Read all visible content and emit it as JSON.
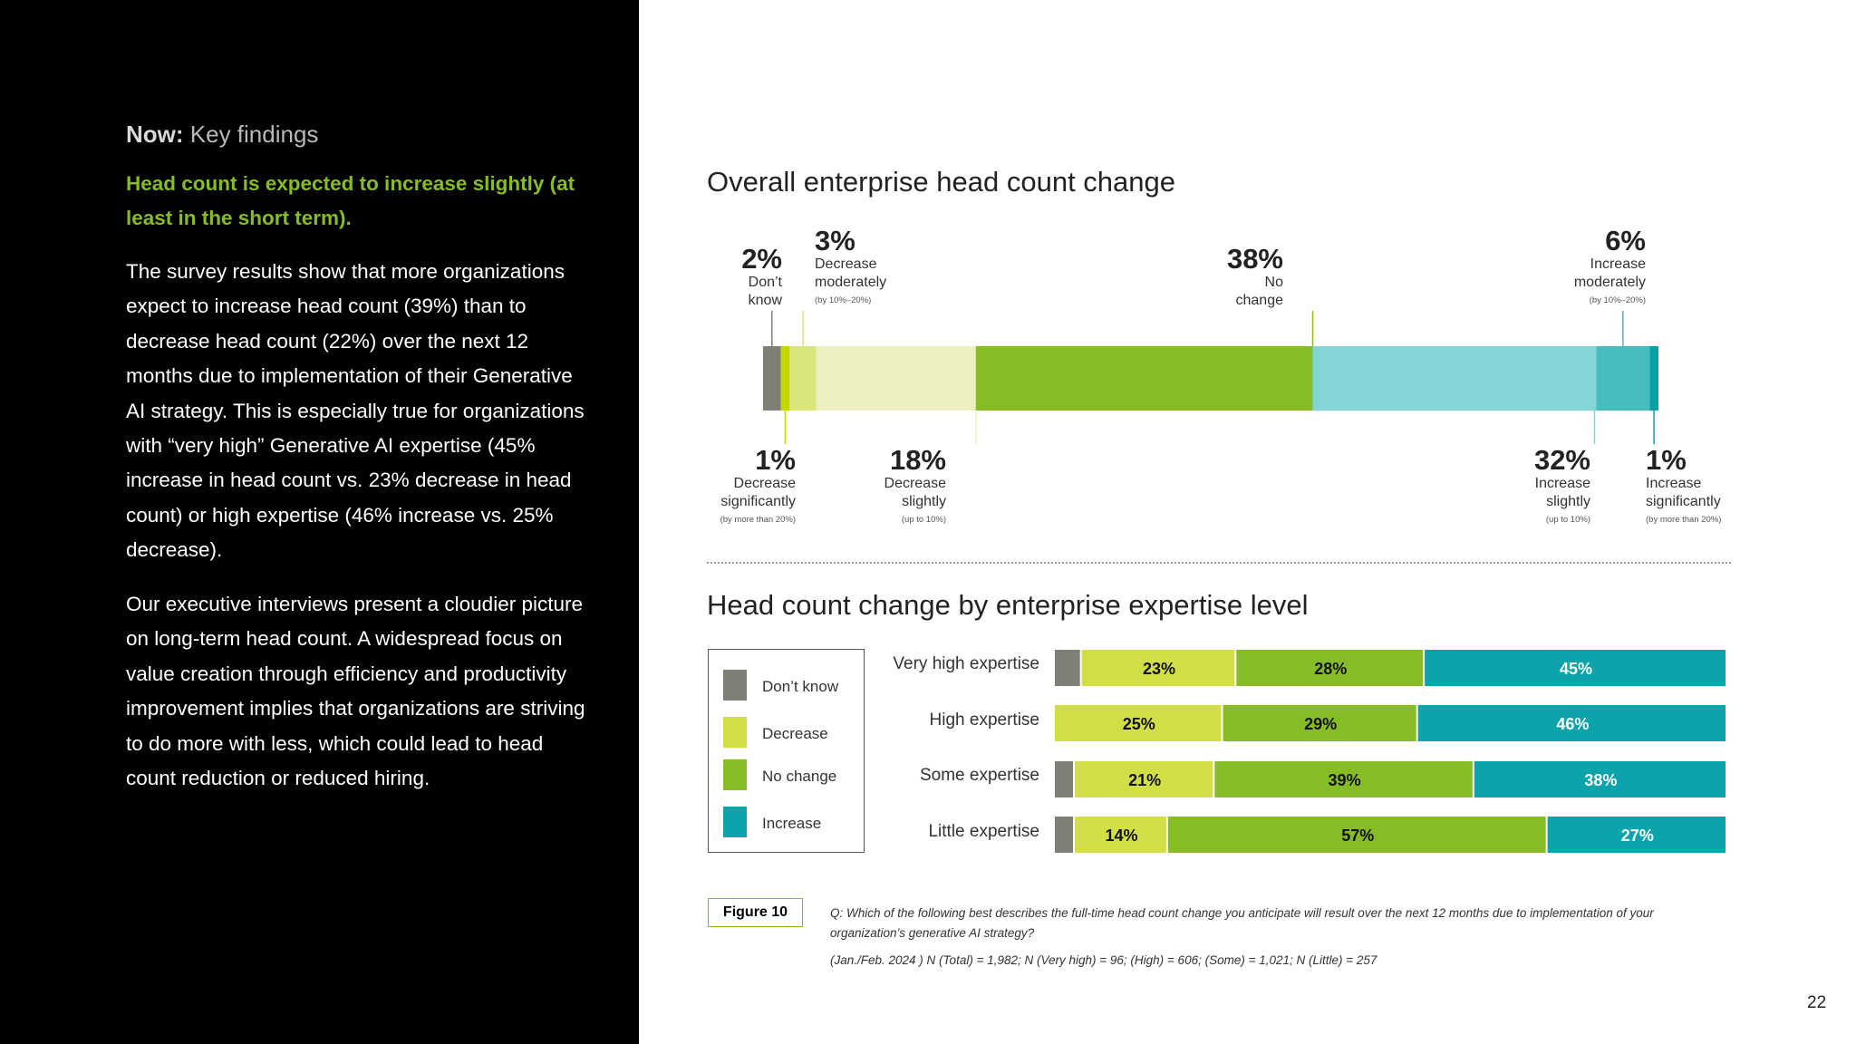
{
  "left_panel": {
    "kicker_bold": "Now:",
    "kicker_rest": " Key findings",
    "headline": "Head count is expected to increase slightly (at least in the short term).",
    "paragraph1": "The survey results show that more organizations expect to increase head count (39%) than to decrease head count (22%) over the next 12 months due to implementation of their Generative AI strategy. This is especially true for organizations with “very high” Generative AI expertise (45% increase in head count vs. 23% decrease in head count) or high expertise (46% increase vs. 25% decrease).",
    "paragraph2": "Our executive interviews present a cloudier picture on long-term head count. A widespread focus on value creation through efficiency and productivity improvement implies that organizations are striving to do more with less, which could lead to head count reduction or reduced hiring."
  },
  "chart_data": [
    {
      "type": "bar",
      "orientation": "horizontal-stacked",
      "title": "Overall enterprise head count change",
      "segments": [
        {
          "pct": "2%",
          "label": "Don’t know",
          "note": "",
          "value": 2,
          "color": "#7f8075"
        },
        {
          "pct": "1%",
          "label": "Decrease significantly",
          "note": "(by more than 20%)",
          "value": 1,
          "color": "#c4d600"
        },
        {
          "pct": "3%",
          "label": "Decrease moderately",
          "note": "(by 10%–20%)",
          "value": 3,
          "color": "#dae57c"
        },
        {
          "pct": "18%",
          "label": "Decrease slightly",
          "note": "(up to 10%)",
          "value": 18,
          "color": "#eef0c0"
        },
        {
          "pct": "38%",
          "label": "No change",
          "note": "",
          "value": 38,
          "color": "#86bc25"
        },
        {
          "pct": "32%",
          "label": "Increase slightly",
          "note": "(up to 10%)",
          "value": 32,
          "color": "#83d6d5"
        },
        {
          "pct": "6%",
          "label": "Increase moderately",
          "note": "(by 10%–20%)",
          "value": 6,
          "color": "#45bcbd"
        },
        {
          "pct": "1%",
          "label": "Increase significantly",
          "note": "(by more than 20%)",
          "value": 1,
          "color": "#0d9ea5"
        }
      ]
    },
    {
      "type": "bar",
      "orientation": "horizontal-stacked",
      "title": "Head count change by enterprise expertise level",
      "series_names": [
        "Don’t know",
        "Decrease",
        "No change",
        "Increase"
      ],
      "colors": [
        "#7f8075",
        "#d2de45",
        "#86bc25",
        "#0aa4aa"
      ],
      "rows": [
        {
          "label": "Very high expertise",
          "values": [
            4,
            23,
            28,
            45
          ],
          "texts": [
            "",
            "23%",
            "28%",
            "45%"
          ]
        },
        {
          "label": "High expertise",
          "values": [
            0,
            25,
            29,
            46
          ],
          "texts": [
            "",
            "25%",
            "29%",
            "46%"
          ]
        },
        {
          "label": "Some expertise",
          "values": [
            3,
            21,
            39,
            38
          ],
          "texts": [
            "",
            "21%",
            "39%",
            "38%"
          ]
        },
        {
          "label": "Little expertise",
          "values": [
            3,
            14,
            57,
            27
          ],
          "texts": [
            "",
            "14%",
            "57%",
            "27%"
          ]
        }
      ]
    }
  ],
  "figure": {
    "label": "Figure 10",
    "question": "Q: Which of the following best describes the full-time head count change you anticipate will result over the next 12 months due to implementation of your organization’s generative AI strategy?",
    "sample": "(Jan./Feb. 2024 ) N (Total) = 1,982; N (Very high) = 96; (High) = 606; (Some) = 1,021; N (Little) = 257"
  },
  "page_number": "22"
}
